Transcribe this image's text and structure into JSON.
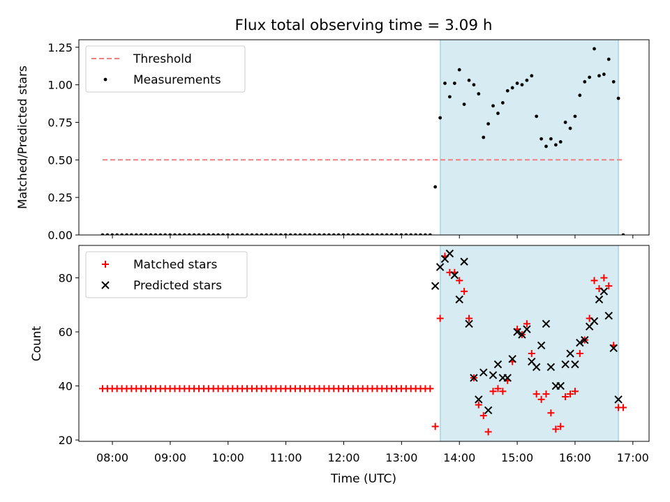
{
  "chart_data": [
    {
      "type": "scatter",
      "title": "Flux total observing time = 3.09 h",
      "xlabel": "",
      "ylabel": "Matched/Predicted stars",
      "xlim_hours": [
        7.42,
        17.28
      ],
      "ylim": [
        0,
        1.3
      ],
      "yticks": [
        0.0,
        0.25,
        0.5,
        0.75,
        1.0,
        1.25
      ],
      "ytick_labels": [
        "0.00",
        "0.25",
        "0.50",
        "0.75",
        "1.00",
        "1.25"
      ],
      "observing_span_hours": [
        13.67,
        16.75
      ],
      "threshold": {
        "name": "Threshold",
        "value": 0.5,
        "x_range_hours": [
          7.83,
          16.83
        ],
        "color": "#f08080"
      },
      "legend": [
        "Threshold",
        "Measurements"
      ],
      "series": [
        {
          "name": "Measurements",
          "color": "#000000",
          "x_hours": [
            13.583,
            13.667,
            13.75,
            13.833,
            13.917,
            14.0,
            14.083,
            14.167,
            14.25,
            14.333,
            14.417,
            14.5,
            14.583,
            14.667,
            14.75,
            14.833,
            14.917,
            15.0,
            15.083,
            15.167,
            15.25,
            15.333,
            15.417,
            15.5,
            15.583,
            15.667,
            15.75,
            15.833,
            15.917,
            16.0,
            16.083,
            16.167,
            16.25,
            16.333,
            16.417,
            16.5,
            16.583,
            16.667,
            16.75,
            16.833
          ],
          "y": [
            0.32,
            0.78,
            1.01,
            0.92,
            1.01,
            1.1,
            0.87,
            1.03,
            1.0,
            0.94,
            0.65,
            0.74,
            0.86,
            0.81,
            0.88,
            0.96,
            0.98,
            1.01,
            1.0,
            1.03,
            1.06,
            0.79,
            0.64,
            0.59,
            0.64,
            0.6,
            0.62,
            0.75,
            0.71,
            0.79,
            0.93,
            1.02,
            1.05,
            1.24,
            1.06,
            1.07,
            1.17,
            1.02,
            0.91,
            0.0
          ],
          "zero_run": {
            "from_hours": 7.83,
            "to_hours": 13.5,
            "step_hours": 0.0833,
            "value": 0.0
          }
        }
      ]
    },
    {
      "type": "scatter",
      "title": "",
      "xlabel": "Time (UTC)",
      "ylabel": "Count",
      "xlim_hours": [
        7.42,
        17.28
      ],
      "ylim": [
        19.5,
        92
      ],
      "yticks": [
        20,
        40,
        60,
        80
      ],
      "ytick_labels": [
        "20",
        "40",
        "60",
        "80"
      ],
      "xticks_hours": [
        8,
        9,
        10,
        11,
        12,
        13,
        14,
        15,
        16,
        17
      ],
      "xtick_labels": [
        "08:00",
        "09:00",
        "10:00",
        "11:00",
        "12:00",
        "13:00",
        "14:00",
        "15:00",
        "16:00",
        "17:00"
      ],
      "observing_span_hours": [
        13.67,
        16.75
      ],
      "legend": [
        "Matched stars",
        "Predicted stars"
      ],
      "series": [
        {
          "name": "Matched stars",
          "marker": "plus",
          "color": "#ff0000",
          "x_hours": [
            13.583,
            13.667,
            13.75,
            13.833,
            13.917,
            14.0,
            14.083,
            14.167,
            14.25,
            14.333,
            14.417,
            14.5,
            14.583,
            14.667,
            14.75,
            14.833,
            14.917,
            15.0,
            15.083,
            15.167,
            15.25,
            15.333,
            15.417,
            15.5,
            15.583,
            15.667,
            15.75,
            15.833,
            15.917,
            16.0,
            16.083,
            16.167,
            16.25,
            16.333,
            16.417,
            16.5,
            16.583,
            16.667,
            16.75,
            16.833
          ],
          "y": [
            25,
            65,
            88,
            82,
            82,
            79,
            75,
            65,
            43,
            33,
            29,
            23,
            38,
            39,
            38,
            42,
            49,
            61,
            59,
            63,
            52,
            37,
            35,
            37,
            30,
            24,
            25,
            36,
            37,
            38,
            52,
            57,
            65,
            79,
            76,
            80,
            77,
            55,
            32,
            32
          ],
          "constant_run": {
            "from_hours": 7.83,
            "to_hours": 13.5,
            "step_hours": 0.0833,
            "value": 39
          }
        },
        {
          "name": "Predicted stars",
          "marker": "x",
          "color": "#000000",
          "x_hours": [
            13.583,
            13.667,
            13.75,
            13.833,
            13.917,
            14.0,
            14.083,
            14.167,
            14.25,
            14.333,
            14.417,
            14.5,
            14.583,
            14.667,
            14.75,
            14.833,
            14.917,
            15.0,
            15.083,
            15.167,
            15.25,
            15.333,
            15.417,
            15.5,
            15.583,
            15.667,
            15.75,
            15.833,
            15.917,
            16.0,
            16.083,
            16.167,
            16.25,
            16.333,
            16.417,
            16.5,
            16.583,
            16.667,
            16.75
          ],
          "y": [
            77,
            84,
            87,
            89,
            81,
            72,
            86,
            63,
            43,
            35,
            45,
            31,
            44,
            48,
            43,
            43,
            50,
            60,
            59,
            61,
            49,
            47,
            55,
            63,
            47,
            40,
            40,
            48,
            52,
            48,
            56,
            57,
            62,
            64,
            72,
            75,
            66,
            54,
            35
          ]
        }
      ]
    }
  ]
}
